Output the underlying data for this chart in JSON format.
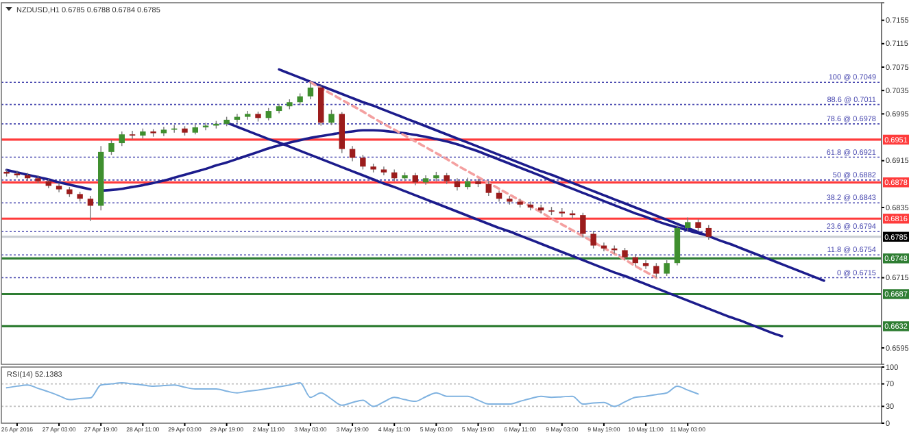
{
  "chart_data": [
    {
      "type": "candlestick",
      "title": "NZDUSD,H1  0.6785 0.6788 0.6784 0.6785",
      "tick_labels": "y",
      "categories": [
        null,
        null,
        null,
        null,
        null,
        null,
        null,
        null,
        null,
        null,
        null,
        null,
        null,
        null,
        null,
        null,
        null,
        null,
        null,
        null,
        null,
        null,
        null,
        null,
        null,
        null,
        null,
        null,
        null,
        null,
        null,
        null,
        null,
        null,
        null,
        null,
        null,
        null,
        null,
        null,
        null,
        null,
        null,
        null,
        null,
        null,
        null,
        null,
        null,
        null,
        null,
        null,
        null,
        null,
        null,
        null,
        null,
        null,
        null,
        null,
        null,
        null,
        null,
        null,
        null,
        null,
        null,
        null,
        null,
        null,
        null,
        null,
        null,
        null,
        null,
        null,
        null,
        null,
        null,
        null,
        null,
        null,
        null,
        null
      ],
      "ohlc": [
        [
          0.6896,
          0.69,
          0.6888,
          0.6893
        ],
        [
          0.6893,
          0.6898,
          0.6886,
          0.689
        ],
        [
          0.689,
          0.6894,
          0.6881,
          0.6885
        ],
        [
          0.6885,
          0.689,
          0.6876,
          0.688
        ],
        [
          0.688,
          0.6884,
          0.6868,
          0.6872
        ],
        [
          0.6872,
          0.6877,
          0.6861,
          0.6866
        ],
        [
          0.6866,
          0.687,
          0.6853,
          0.6858
        ],
        [
          0.6858,
          0.6862,
          0.6845,
          0.685
        ],
        [
          0.685,
          0.6855,
          0.6812,
          0.6838
        ],
        [
          0.6838,
          0.694,
          0.683,
          0.693
        ],
        [
          0.693,
          0.695,
          0.6925,
          0.6945
        ],
        [
          0.6945,
          0.6965,
          0.694,
          0.696
        ],
        [
          0.696,
          0.6966,
          0.6952,
          0.6958
        ],
        [
          0.6958,
          0.697,
          0.6953,
          0.6965
        ],
        [
          0.6965,
          0.6969,
          0.6956,
          0.6962
        ],
        [
          0.6962,
          0.6973,
          0.6957,
          0.6968
        ],
        [
          0.6968,
          0.6976,
          0.6963,
          0.697
        ],
        [
          0.697,
          0.6974,
          0.6958,
          0.6963
        ],
        [
          0.6963,
          0.6978,
          0.696,
          0.6972
        ],
        [
          0.6972,
          0.698,
          0.6967,
          0.6975
        ],
        [
          0.6975,
          0.6983,
          0.697,
          0.6978
        ],
        [
          0.6978,
          0.699,
          0.6974,
          0.6985
        ],
        [
          0.6985,
          0.6995,
          0.698,
          0.699
        ],
        [
          0.699,
          0.7,
          0.6985,
          0.6995
        ],
        [
          0.6995,
          0.6999,
          0.6982,
          0.6988
        ],
        [
          0.6988,
          0.7005,
          0.6984,
          0.7
        ],
        [
          0.7,
          0.7012,
          0.6996,
          0.7008
        ],
        [
          0.7008,
          0.702,
          0.7003,
          0.7015
        ],
        [
          0.7015,
          0.703,
          0.701,
          0.7025
        ],
        [
          0.7025,
          0.7049,
          0.702,
          0.704
        ],
        [
          0.704,
          0.7044,
          0.6975,
          0.698
        ],
        [
          0.698,
          0.7002,
          0.6976,
          0.6995
        ],
        [
          0.6995,
          0.6998,
          0.6928,
          0.6935
        ],
        [
          0.6935,
          0.694,
          0.6914,
          0.692
        ],
        [
          0.692,
          0.6925,
          0.69,
          0.6905
        ],
        [
          0.6905,
          0.691,
          0.6895,
          0.69
        ],
        [
          0.69,
          0.6905,
          0.689,
          0.6895
        ],
        [
          0.6895,
          0.69,
          0.688,
          0.6885
        ],
        [
          0.6885,
          0.6895,
          0.688,
          0.689
        ],
        [
          0.689,
          0.6894,
          0.6873,
          0.6878
        ],
        [
          0.6878,
          0.689,
          0.6874,
          0.6885
        ],
        [
          0.6885,
          0.6896,
          0.688,
          0.689
        ],
        [
          0.689,
          0.6894,
          0.6875,
          0.688
        ],
        [
          0.688,
          0.6885,
          0.6864,
          0.687
        ],
        [
          0.687,
          0.6886,
          0.6866,
          0.688
        ],
        [
          0.688,
          0.6884,
          0.687,
          0.6875
        ],
        [
          0.6875,
          0.688,
          0.6855,
          0.686
        ],
        [
          0.686,
          0.6864,
          0.6845,
          0.685
        ],
        [
          0.685,
          0.6855,
          0.684,
          0.6845
        ],
        [
          0.6845,
          0.685,
          0.6835,
          0.684
        ],
        [
          0.684,
          0.6845,
          0.683,
          0.6835
        ],
        [
          0.6835,
          0.684,
          0.6825,
          0.683
        ],
        [
          0.683,
          0.6836,
          0.6822,
          0.6828
        ],
        [
          0.6828,
          0.6834,
          0.6819,
          0.6825
        ],
        [
          0.6825,
          0.683,
          0.6816,
          0.6822
        ],
        [
          0.6822,
          0.6826,
          0.6784,
          0.679
        ],
        [
          0.679,
          0.6795,
          0.6765,
          0.677
        ],
        [
          0.677,
          0.6775,
          0.676,
          0.6765
        ],
        [
          0.6765,
          0.677,
          0.6756,
          0.6762
        ],
        [
          0.6762,
          0.6766,
          0.6745,
          0.675
        ],
        [
          0.675,
          0.6755,
          0.6735,
          0.674
        ],
        [
          0.674,
          0.6745,
          0.673,
          0.6735
        ],
        [
          0.6735,
          0.674,
          0.6715,
          0.6722
        ],
        [
          0.6722,
          0.6745,
          0.6718,
          0.674
        ],
        [
          0.674,
          0.6805,
          0.6736,
          0.68
        ],
        [
          0.68,
          0.6818,
          0.6795,
          0.681
        ],
        [
          0.681,
          0.6815,
          0.6795,
          0.68
        ],
        [
          0.68,
          0.6805,
          0.678,
          0.6785
        ],
        null,
        null,
        null,
        null,
        null,
        null,
        null,
        null,
        null,
        null,
        null,
        null,
        null,
        null,
        null,
        null
      ],
      "series": [
        {
          "type": "line",
          "color": "#1c1c8c",
          "values": [
            null,
            null,
            null,
            null,
            null,
            null,
            null,
            null,
            null,
            0.6864,
            0.6865,
            0.6867,
            0.687,
            0.6873,
            0.6877,
            0.6881,
            0.6886,
            0.6891,
            0.6896,
            0.6901,
            0.6907,
            0.6912,
            0.6918,
            0.6924,
            0.693,
            0.6936,
            0.6941,
            0.6946,
            0.695,
            0.6954,
            0.6957,
            0.696,
            0.6963,
            0.6965,
            0.6967,
            0.6967,
            0.6966,
            0.6964,
            0.6962,
            0.6959,
            0.6956,
            0.6952,
            0.6948,
            0.6943,
            0.6937,
            0.6931,
            0.6924,
            0.6917,
            0.691,
            0.6903,
            0.6896,
            0.6889,
            0.6881,
            0.6874,
            0.6867,
            0.686,
            0.6853,
            0.6846,
            0.6839,
            0.6832,
            0.6825,
            0.6819,
            0.6812,
            0.6806,
            0.6801,
            0.6796,
            0.6791,
            0.6787,
            null,
            null,
            null,
            null,
            null,
            null,
            null,
            null,
            null,
            null,
            null,
            null,
            null,
            null,
            null,
            null
          ]
        },
        {
          "type": "line",
          "color": "#1c1c8c",
          "values": [
            0.6899,
            0.6895,
            0.6891,
            0.6887,
            0.6883,
            0.6878,
            0.6874,
            0.687,
            0.6866,
            null,
            null,
            null,
            null,
            null,
            null,
            null,
            null,
            null,
            null,
            null,
            null,
            null,
            null,
            null,
            null,
            null,
            null,
            null,
            null,
            null,
            null,
            null,
            null,
            null,
            null,
            null,
            null,
            null,
            null,
            null,
            null,
            null,
            null,
            null,
            null,
            null,
            null,
            null,
            null,
            null,
            null,
            null,
            null,
            null,
            null,
            null,
            null,
            null,
            null,
            null,
            null,
            null,
            null,
            null,
            null,
            null,
            null,
            null,
            null,
            null,
            null,
            null,
            null,
            null,
            null,
            null,
            null,
            null,
            null,
            null,
            null,
            null,
            null,
            null
          ]
        },
        {
          "type": "line",
          "color": "#1c1c8c",
          "values": [
            null,
            null,
            null,
            null,
            null,
            null,
            null,
            null,
            null,
            null,
            null,
            null,
            null,
            null,
            null,
            null,
            null,
            null,
            null,
            null,
            null,
            null,
            null,
            null,
            null,
            null,
            0.7071,
            0.7064,
            0.7057,
            0.705,
            0.7043,
            0.7036,
            0.7029,
            0.7022,
            0.7015,
            0.7009,
            0.7002,
            0.6995,
            0.6988,
            0.6981,
            0.6974,
            0.6967,
            0.696,
            0.6953,
            0.6946,
            0.6939,
            0.6932,
            0.6925,
            0.6918,
            0.6911,
            0.6904,
            0.6897,
            0.6891,
            0.6884,
            0.6877,
            0.687,
            0.6863,
            0.6856,
            0.6849,
            0.6842,
            0.6835,
            0.6828,
            0.6821,
            0.6814,
            0.6807,
            0.68,
            0.6793,
            0.6786,
            0.6779,
            0.6773,
            0.6766,
            0.6759,
            0.6752,
            0.6745,
            0.6738,
            0.6731,
            0.6724,
            0.6717,
            0.671,
            null,
            null,
            null,
            null,
            null
          ]
        },
        {
          "type": "line",
          "color": "#1c1c8c",
          "values": [
            null,
            null,
            null,
            null,
            null,
            null,
            null,
            null,
            null,
            null,
            null,
            null,
            null,
            null,
            null,
            null,
            null,
            null,
            null,
            null,
            null,
            0.698,
            0.6973,
            0.6966,
            0.6959,
            0.6952,
            0.6946,
            0.6939,
            0.6932,
            0.6925,
            0.6918,
            0.6911,
            0.6904,
            0.6897,
            0.689,
            0.6883,
            0.6876,
            0.687,
            0.6863,
            0.6856,
            0.6849,
            0.6842,
            0.6835,
            0.6828,
            0.6821,
            0.6814,
            0.6807,
            0.68,
            0.6794,
            0.6787,
            0.678,
            0.6773,
            0.6766,
            0.6759,
            0.6752,
            0.6745,
            0.6738,
            0.6731,
            0.6724,
            0.6718,
            0.6711,
            0.6704,
            0.6697,
            0.669,
            0.6683,
            0.6676,
            0.6669,
            0.6662,
            0.6655,
            0.6648,
            0.6642,
            0.6635,
            0.6628,
            0.6621,
            0.6615,
            null,
            null,
            null,
            null,
            null,
            null,
            null,
            null,
            null
          ]
        },
        {
          "type": "line",
          "color": "#f4a0a0",
          "line_style": "dashed",
          "values": [
            null,
            null,
            null,
            null,
            null,
            null,
            null,
            null,
            null,
            null,
            null,
            null,
            null,
            null,
            null,
            null,
            null,
            null,
            null,
            null,
            null,
            null,
            null,
            null,
            null,
            null,
            null,
            null,
            null,
            0.7049,
            0.7039,
            0.7029,
            0.7019,
            0.7009,
            0.6999,
            0.6988,
            0.6978,
            0.6968,
            0.6958,
            0.6948,
            0.6938,
            0.6928,
            0.6918,
            0.6907,
            0.6897,
            0.6887,
            0.6877,
            0.6867,
            0.6857,
            0.6847,
            0.6837,
            0.6827,
            0.6816,
            0.6806,
            0.6796,
            0.6786,
            0.6776,
            0.6766,
            0.6756,
            0.6746,
            0.6735,
            0.6725,
            0.6715,
            null,
            null,
            null,
            null,
            null,
            null,
            null,
            null,
            null,
            null,
            null,
            null,
            null,
            null,
            null,
            null,
            null,
            null,
            null,
            null,
            null
          ]
        }
      ],
      "ref_lines": [
        {
          "axis": "y",
          "value": 0.7049,
          "label": "100 @ 0.7049",
          "color": "#4a4ab0",
          "line_style": "dotted"
        },
        {
          "axis": "y",
          "value": 0.7011,
          "label": "88.6 @ 0.7011",
          "color": "#4a4ab0",
          "line_style": "dotted"
        },
        {
          "axis": "y",
          "value": 0.6978,
          "label": "78.6 @ 0.6978",
          "color": "#4a4ab0",
          "line_style": "dotted"
        },
        {
          "axis": "y",
          "value": 0.6921,
          "label": "61.8 @ 0.6921",
          "color": "#4a4ab0",
          "line_style": "dotted"
        },
        {
          "axis": "y",
          "value": 0.6882,
          "label": "50 @ 0.6882",
          "color": "#4a4ab0",
          "line_style": "dotted"
        },
        {
          "axis": "y",
          "value": 0.6843,
          "label": "38.2 @ 0.6843",
          "color": "#4a4ab0",
          "line_style": "dotted"
        },
        {
          "axis": "y",
          "value": 0.6794,
          "label": "23.6 @ 0.6794",
          "color": "#4a4ab0",
          "line_style": "dotted"
        },
        {
          "axis": "y",
          "value": 0.6754,
          "label": "11.8 @ 0.6754",
          "color": "#4a4ab0",
          "line_style": "dotted"
        },
        {
          "axis": "y",
          "value": 0.6715,
          "label": "0 @ 0.6715",
          "color": "#4a4ab0",
          "line_style": "dotted"
        },
        {
          "axis": "y",
          "value": 0.6951,
          "label": "0.6951",
          "color": "#ff3b3b"
        },
        {
          "axis": "y",
          "value": 0.6878,
          "label": "0.6878",
          "color": "#ff3b3b"
        },
        {
          "axis": "y",
          "value": 0.6816,
          "label": "0.6816",
          "color": "#ff3b3b"
        },
        {
          "axis": "y",
          "value": 0.6785,
          "label": "0.6785",
          "color": "#c8ccd2"
        },
        {
          "axis": "y",
          "value": 0.6748,
          "label": "0.6748",
          "color": "#2e7d32"
        },
        {
          "axis": "y",
          "value": 0.6687,
          "label": "0.6687",
          "color": "#2e7d32"
        },
        {
          "axis": "y",
          "value": 0.6632,
          "label": "0.6632",
          "color": "#2e7d32"
        }
      ],
      "ylim": [
        0.6567,
        0.7185
      ],
      "yticks": [
        0.7155,
        0.7115,
        0.7075,
        0.7035,
        0.6995,
        0.6915,
        0.6835,
        0.6715,
        0.6595
      ]
    },
    {
      "type": "line",
      "title": "RSI(14) 52.1383",
      "categories": [
        null,
        "26 Apr 2016",
        null,
        null,
        null,
        "27 Apr 03:00",
        null,
        null,
        null,
        "27 Apr 19:00",
        null,
        null,
        null,
        "28 Apr 11:00",
        null,
        null,
        null,
        "29 Apr 03:00",
        null,
        null,
        null,
        "29 Apr 19:00",
        null,
        null,
        null,
        "2 May 11:00",
        null,
        null,
        null,
        "3 May 03:00",
        null,
        null,
        null,
        "3 May 19:00",
        null,
        null,
        null,
        "4 May 11:00",
        null,
        null,
        null,
        "5 May 03:00",
        null,
        null,
        null,
        "5 May 19:00",
        null,
        null,
        null,
        "6 May 11:00",
        null,
        null,
        null,
        "9 May 03:00",
        null,
        null,
        null,
        "9 May 19:00",
        null,
        null,
        null,
        "10 May 11:00",
        null,
        null,
        null,
        "11 May 03:00",
        null,
        null,
        null,
        null,
        null,
        null,
        null,
        null,
        null,
        null,
        null,
        null,
        null,
        null,
        null,
        null,
        null,
        null
      ],
      "series": [
        {
          "color": "#7fb2e0",
          "values": [
            63,
            66,
            68,
            62,
            56,
            49,
            42,
            44,
            45,
            68,
            70,
            72,
            70,
            68,
            66,
            67,
            68,
            64,
            61,
            61,
            61,
            57,
            54,
            57,
            59,
            62,
            65,
            68,
            72,
            46,
            54,
            43,
            32,
            37,
            41,
            30,
            38,
            46,
            42,
            39,
            47,
            54,
            48,
            48,
            48,
            41,
            34,
            34,
            34,
            39,
            44,
            48,
            46,
            47,
            48,
            34,
            36,
            37,
            30,
            38,
            46,
            48,
            51,
            54,
            66,
            59,
            52,
            null,
            null,
            null,
            null,
            null,
            null,
            null,
            null,
            null,
            null,
            null,
            null,
            null,
            null,
            null,
            null,
            null
          ]
        }
      ],
      "ref_lines": [
        {
          "axis": "y",
          "value": 70,
          "color": "#c0c0c0",
          "line_style": "dotted"
        },
        {
          "axis": "y",
          "value": 30,
          "color": "#c0c0c0",
          "line_style": "dotted"
        }
      ],
      "ylim": [
        0,
        100
      ],
      "yticks": [
        0,
        30,
        70,
        100
      ]
    }
  ]
}
